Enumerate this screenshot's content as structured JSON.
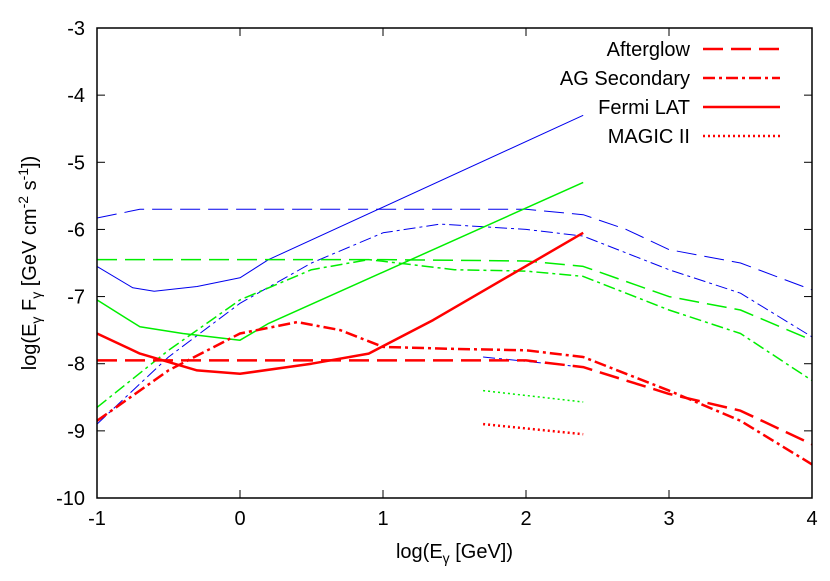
{
  "chart_data": {
    "type": "line",
    "xlim": [
      -1,
      4
    ],
    "ylim": [
      -10,
      -3
    ],
    "x_ticks": [
      -1,
      0,
      1,
      2,
      3,
      4
    ],
    "y_ticks": [
      -10,
      -9,
      -8,
      -7,
      -6,
      -5,
      -4,
      -3
    ],
    "x_tick_labels": [
      "-1",
      "0",
      "1",
      "2",
      "3",
      "4"
    ],
    "y_tick_labels": [
      "-10",
      "-9",
      "-8",
      "-7",
      "-6",
      "-5",
      "-4",
      "-3"
    ],
    "xlabel": {
      "pre": "log(E",
      "sub": "γ",
      "post": " [GeV])"
    },
    "ylabel": {
      "p1": "log(E",
      "s1": "γ",
      "p2": " F",
      "s2": "γ",
      "p3": " [GeV cm",
      "e1": "-2",
      "p4": " s",
      "e2": "-1",
      "p5": "])"
    },
    "legend_position": "top-right",
    "legend": [
      {
        "label": "Afterglow",
        "dash": "long-dash"
      },
      {
        "label": "AG Secondary",
        "dash": "dash-dot"
      },
      {
        "label": "Fermi LAT",
        "dash": "solid"
      },
      {
        "label": "MAGIC II",
        "dash": "dotted"
      }
    ],
    "colors": {
      "red": "#ff0000",
      "green": "#00ee00",
      "blue": "#0000ee"
    },
    "series": [
      {
        "color": "blue",
        "dash": "long-dash",
        "width": 1,
        "points": [
          [
            -1,
            -5.83
          ],
          [
            -0.7,
            -5.7
          ],
          [
            -0.5,
            -5.7
          ],
          [
            1,
            -5.7
          ],
          [
            2,
            -5.7
          ],
          [
            2.4,
            -5.78
          ],
          [
            2.7,
            -6.0
          ],
          [
            3,
            -6.3
          ],
          [
            3.5,
            -6.5
          ],
          [
            4,
            -6.9
          ]
        ]
      },
      {
        "color": "blue",
        "dash": "dash-dot",
        "width": 1,
        "points": [
          [
            -1,
            -8.9
          ],
          [
            -0.5,
            -7.9
          ],
          [
            0,
            -7.1
          ],
          [
            0.5,
            -6.5
          ],
          [
            1,
            -6.05
          ],
          [
            1.4,
            -5.92
          ],
          [
            2,
            -6.0
          ],
          [
            2.4,
            -6.1
          ],
          [
            3,
            -6.6
          ],
          [
            3.5,
            -6.95
          ],
          [
            4,
            -7.6
          ]
        ]
      },
      {
        "color": "blue",
        "dash": "solid",
        "width": 1,
        "points": [
          [
            -1,
            -6.55
          ],
          [
            -0.75,
            -6.87
          ],
          [
            -0.6,
            -6.92
          ],
          [
            -0.3,
            -6.85
          ],
          [
            0,
            -6.72
          ],
          [
            0.2,
            -6.45
          ],
          [
            2.4,
            -4.3
          ]
        ]
      },
      {
        "color": "blue",
        "dash": "dash-dot",
        "width": 1,
        "points": [
          [
            1.7,
            -7.9
          ],
          [
            2.4,
            -8.05
          ]
        ]
      },
      {
        "color": "green",
        "dash": "long-dash",
        "width": 1.5,
        "points": [
          [
            -1,
            -6.45
          ],
          [
            1,
            -6.45
          ],
          [
            2,
            -6.47
          ],
          [
            2.4,
            -6.55
          ],
          [
            3,
            -7.0
          ],
          [
            3.5,
            -7.2
          ],
          [
            4,
            -7.65
          ]
        ]
      },
      {
        "color": "green",
        "dash": "dash-dot",
        "width": 1.5,
        "points": [
          [
            -1,
            -8.65
          ],
          [
            -0.5,
            -7.8
          ],
          [
            0,
            -7.05
          ],
          [
            0.5,
            -6.6
          ],
          [
            0.9,
            -6.45
          ],
          [
            1.5,
            -6.6
          ],
          [
            2,
            -6.62
          ],
          [
            2.4,
            -6.7
          ],
          [
            3,
            -7.2
          ],
          [
            3.5,
            -7.55
          ],
          [
            4,
            -8.25
          ]
        ]
      },
      {
        "color": "green",
        "dash": "solid",
        "width": 1.5,
        "points": [
          [
            -1,
            -7.05
          ],
          [
            -0.7,
            -7.45
          ],
          [
            -0.4,
            -7.55
          ],
          [
            0,
            -7.65
          ],
          [
            0.2,
            -7.4
          ],
          [
            2.4,
            -5.3
          ]
        ]
      },
      {
        "color": "green",
        "dash": "dotted",
        "width": 1.5,
        "points": [
          [
            1.7,
            -8.4
          ],
          [
            2.4,
            -8.57
          ]
        ]
      },
      {
        "color": "red",
        "dash": "long-dash",
        "width": 2.5,
        "points": [
          [
            -1,
            -7.95
          ],
          [
            1,
            -7.95
          ],
          [
            2,
            -7.95
          ],
          [
            2.4,
            -8.05
          ],
          [
            3,
            -8.45
          ],
          [
            3.5,
            -8.7
          ],
          [
            4,
            -9.2
          ]
        ]
      },
      {
        "color": "red",
        "dash": "dash-dot",
        "width": 2.5,
        "points": [
          [
            -1,
            -8.85
          ],
          [
            -0.5,
            -8.1
          ],
          [
            0,
            -7.55
          ],
          [
            0.4,
            -7.38
          ],
          [
            0.7,
            -7.5
          ],
          [
            1,
            -7.75
          ],
          [
            1.5,
            -7.78
          ],
          [
            2,
            -7.8
          ],
          [
            2.4,
            -7.9
          ],
          [
            3,
            -8.4
          ],
          [
            3.5,
            -8.85
          ],
          [
            4,
            -9.5
          ]
        ]
      },
      {
        "color": "red",
        "dash": "solid",
        "width": 2.5,
        "points": [
          [
            -1,
            -7.55
          ],
          [
            -0.7,
            -7.85
          ],
          [
            -0.3,
            -8.1
          ],
          [
            0,
            -8.15
          ],
          [
            0.5,
            -8.0
          ],
          [
            0.9,
            -7.85
          ],
          [
            1.35,
            -7.35
          ],
          [
            2.4,
            -6.05
          ]
        ]
      },
      {
        "color": "red",
        "dash": "dotted",
        "width": 2.5,
        "points": [
          [
            1.7,
            -8.9
          ],
          [
            2.4,
            -9.05
          ]
        ]
      }
    ]
  }
}
